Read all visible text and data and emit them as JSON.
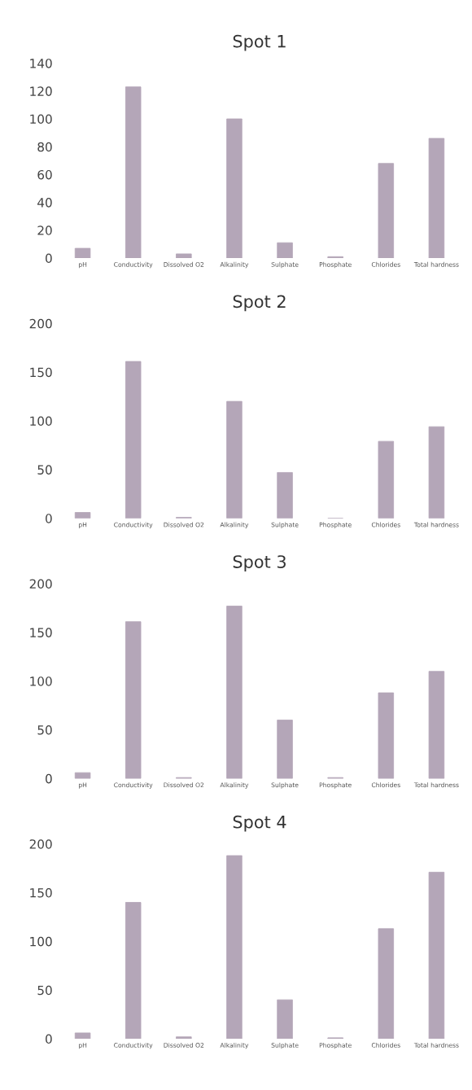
{
  "chart_data": [
    {
      "type": "bar",
      "title": "Spot 1",
      "categories": [
        "pH",
        "Conductivity",
        "Dissolved O2",
        "Alkalinity",
        "Sulphate",
        "Phosphate",
        "Chlorides",
        "Total hardness"
      ],
      "values": [
        7,
        123,
        3,
        100,
        11,
        1,
        68,
        86
      ],
      "color": "#b4a6b8",
      "ylim": [
        0,
        140
      ],
      "yticks": [
        0,
        20,
        40,
        60,
        80,
        100,
        120,
        140
      ]
    },
    {
      "type": "bar",
      "title": "Spot 2",
      "categories": [
        "pH",
        "Conductivity",
        "Dissolved O2",
        "Alkalinity",
        "Sulphate",
        "Phosphate",
        "Chlorides",
        "Total hardness"
      ],
      "values": [
        6,
        161,
        1,
        120,
        47,
        0,
        79,
        94
      ],
      "color": "#b4a6b8",
      "ylim": [
        0,
        200
      ],
      "yticks": [
        0,
        50,
        100,
        150,
        200
      ]
    },
    {
      "type": "bar",
      "title": "Spot 3",
      "categories": [
        "pH",
        "Conductivity",
        "Dissolved O2",
        "Alkalinity",
        "Sulphate",
        "Phosphate",
        "Chlorides",
        "Total hardness"
      ],
      "values": [
        6,
        161,
        1,
        177,
        60,
        1,
        88,
        110
      ],
      "color": "#b4a6b8",
      "ylim": [
        0,
        200
      ],
      "yticks": [
        0,
        50,
        100,
        150,
        200
      ]
    },
    {
      "type": "bar",
      "title": "Spot 4",
      "categories": [
        "pH",
        "Conductivity",
        "Dissolved O2",
        "Alkalinity",
        "Sulphate",
        "Phosphate",
        "Chlorides",
        "Total hardness"
      ],
      "values": [
        6,
        140,
        2,
        188,
        40,
        1,
        113,
        171
      ],
      "color": "#b4a6b8",
      "ylim": [
        0,
        200
      ],
      "yticks": [
        0,
        50,
        100,
        150,
        200
      ]
    }
  ]
}
